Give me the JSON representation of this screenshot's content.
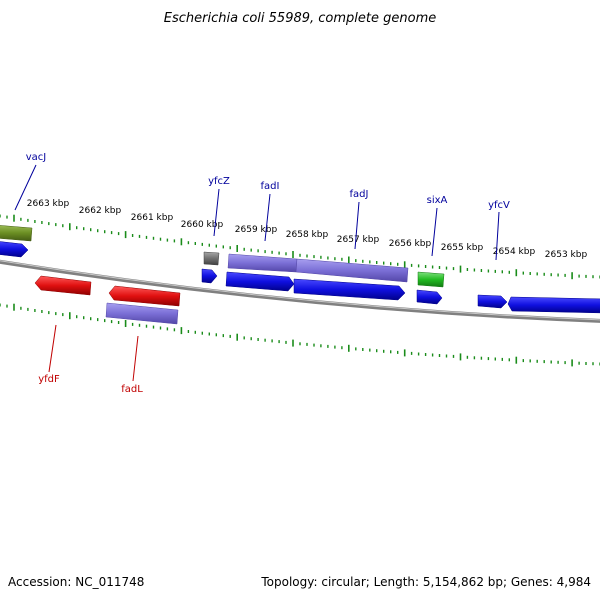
{
  "title": "Escherichia coli 55989, complete genome",
  "footer": {
    "accession": "Accession: NC_011748",
    "summary": "Topology: circular; Length: 5,154,862 bp; Genes: 4,984"
  },
  "colors": {
    "ticks": "#1a8c1a",
    "backbone": "#808080",
    "label_forward": "#00009c",
    "label_reverse": "#c00000",
    "cds_blue": "#1010e0",
    "gene_purple": "#7b6fd6",
    "cds_red": "#e01010",
    "gene_green": "#22bb22",
    "gene_olive": "#6b8e23",
    "gene_gray": "#707070"
  },
  "scale_labels": [
    "2663 kbp",
    "2662 kbp",
    "2661 kbp",
    "2660 kbp",
    "2659 kbp",
    "2658 kbp",
    "2657 kbp",
    "2656 kbp",
    "2655 kbp",
    "2654 kbp",
    "2653 kbp"
  ],
  "gene_labels": [
    {
      "name": "vacJ",
      "strand": "forward"
    },
    {
      "name": "yfcZ",
      "strand": "forward"
    },
    {
      "name": "fadI",
      "strand": "forward"
    },
    {
      "name": "fadJ",
      "strand": "forward"
    },
    {
      "name": "sixA",
      "strand": "forward"
    },
    {
      "name": "yfcV",
      "strand": "forward"
    },
    {
      "name": "yfdF",
      "strand": "reverse"
    },
    {
      "name": "fadL",
      "strand": "reverse"
    }
  ]
}
